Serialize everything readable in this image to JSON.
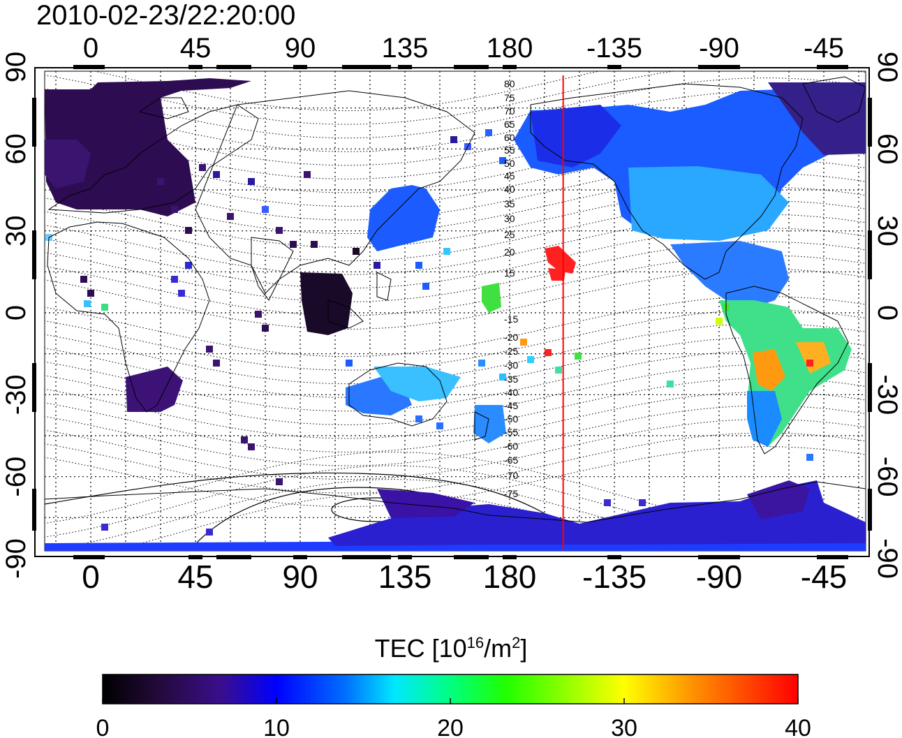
{
  "header": {
    "timestamp": "2010-02-23/22:20:00"
  },
  "map": {
    "lon_ticks": [
      "0",
      "45",
      "90",
      "135",
      "180",
      "-135",
      "-90",
      "-45"
    ],
    "lon_tick_values": [
      0,
      45,
      90,
      135,
      180,
      225,
      270,
      315
    ],
    "lat_ticks": [
      "90",
      "60",
      "30",
      "0",
      "-30",
      "-60",
      "-90"
    ],
    "lat_tick_values": [
      90,
      60,
      30,
      0,
      -30,
      -60,
      -90
    ],
    "lon_range": [
      -20,
      335
    ],
    "lat_range": [
      -90,
      90
    ],
    "grid": "dotted every 15 degrees",
    "meridian_marker": {
      "lon": 203,
      "color": "#ff0000"
    },
    "contour_labels": [
      "80",
      "75",
      "70",
      "65",
      "60",
      "55",
      "50",
      "45",
      "40",
      "35",
      "30",
      "25",
      "20",
      "15",
      "-15",
      "-20",
      "-25",
      "-30",
      "-35",
      "-40",
      "-45",
      "-50",
      "-55",
      "-60",
      "-65",
      "-70",
      "-75"
    ]
  },
  "colorbar": {
    "label_main": "TEC  [10",
    "label_sup1": "16",
    "label_mid": "/m",
    "label_sup2": "2",
    "label_end": "]",
    "ticks": [
      "0",
      "10",
      "20",
      "30",
      "40"
    ],
    "range": [
      0,
      40
    ],
    "colors": [
      "#000000",
      "#2a0a4a",
      "#3b10a0",
      "#0000ff",
      "#0080ff",
      "#00ffff",
      "#00ff80",
      "#00ff00",
      "#ffff00",
      "#ff8000",
      "#ff0000"
    ]
  }
}
